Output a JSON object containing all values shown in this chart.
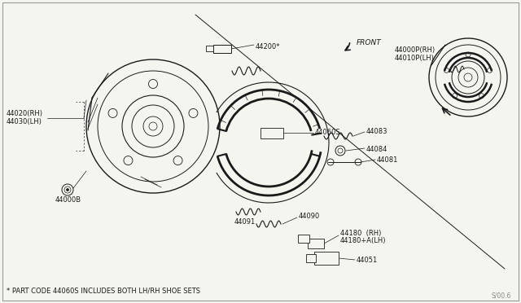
{
  "bg_color": "#f5f5f0",
  "line_color": "#1a1a1a",
  "fig_width": 6.4,
  "fig_height": 3.72,
  "dpi": 100,
  "footnote": "* PART CODE 44060S INCLUDES BOTH LH/RH SHOE SETS",
  "watermark": "S/00.6",
  "labels": {
    "44020RH": "44020(RH)",
    "44030LH": "44030(LH)",
    "44000B": "44000B",
    "44200": "44200*",
    "44060S": "44060S",
    "44083": "44083",
    "44084": "44084",
    "44081": "44081",
    "44090": "44090",
    "44091": "44091",
    "44180": "44180  (RH)",
    "44180A": "44180+A(LH)",
    "44051": "44051",
    "44000P": "44000P(RH)",
    "44010P": "44010P(LH)",
    "FRONT": "FRONT"
  }
}
